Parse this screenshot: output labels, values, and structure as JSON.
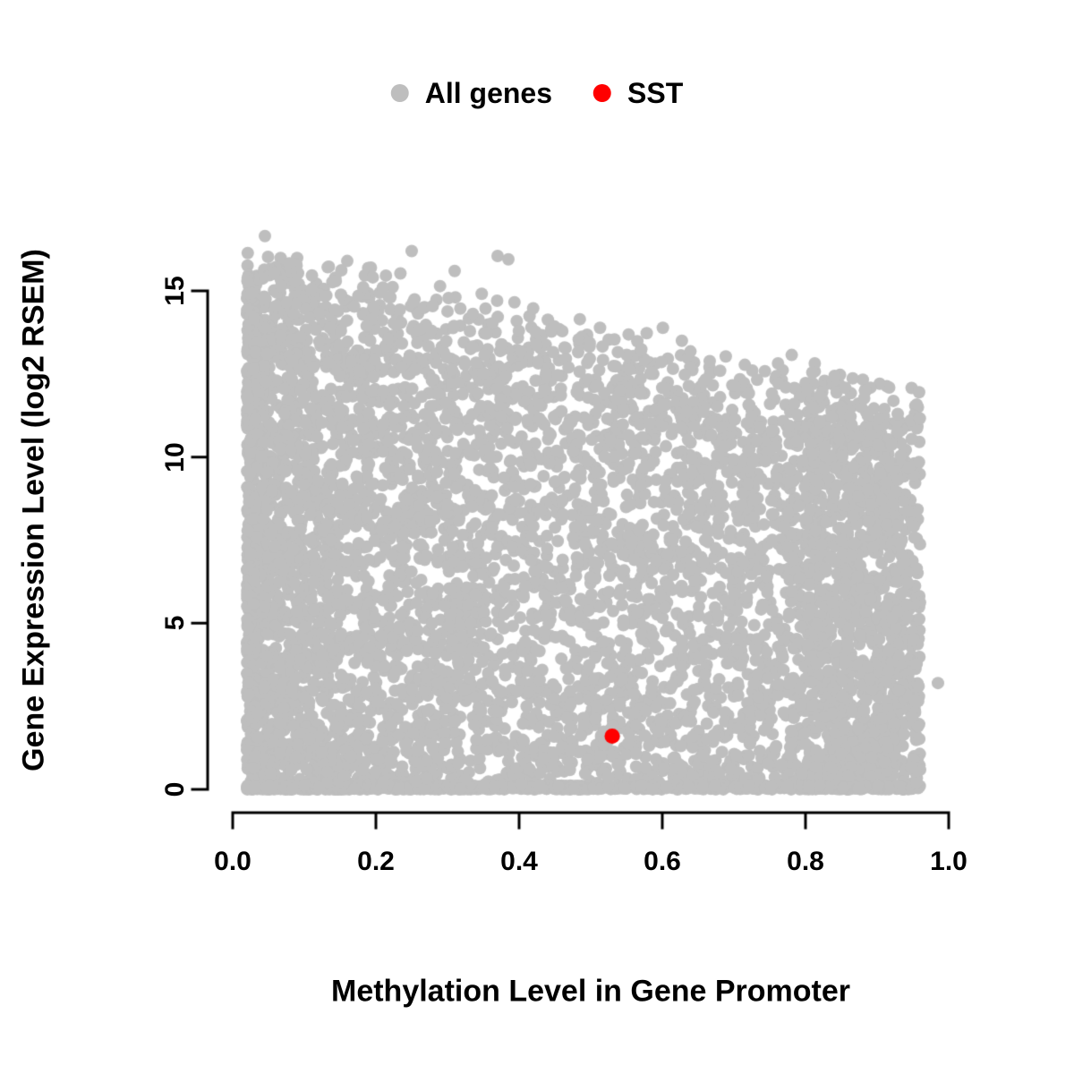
{
  "figure": {
    "background_color": "#ffffff",
    "text_color": "#000000"
  },
  "chart_data": {
    "type": "scatter",
    "title": "",
    "xlabel": "Methylation Level in Gene Promoter",
    "ylabel": "Gene Expression Level (log2 RSEM)",
    "xlim": [
      0,
      1.0
    ],
    "ylim": [
      0,
      16.8
    ],
    "xticks": [
      0.0,
      0.2,
      0.4,
      0.6,
      0.8,
      1.0
    ],
    "xtick_labels": [
      "0.0",
      "0.2",
      "0.4",
      "0.6",
      "0.8",
      "1.0"
    ],
    "yticks": [
      0,
      5,
      10,
      15
    ],
    "ytick_labels": [
      "0",
      "5",
      "10",
      "15"
    ],
    "grid": false,
    "legend_position": "top-center",
    "series": [
      {
        "name": "All genes",
        "color": "#bebebe",
        "marker": "filled-circle",
        "n_points": 7000,
        "distribution": {
          "type": "procedural-cloud",
          "description": "Dense gray cloud: methylation beta 0.02-0.96, expression 0 to ~16.5; maximum expression envelope declines roughly linearly from ~16.6 at beta=0 to ~12 at beta=1; dense band at expression 0; extra dense column at beta 0.8-0.96",
          "seed": 1337,
          "x_min": 0.02,
          "x_max": 0.96,
          "x_skew": 1.5,
          "right_cluster_fraction": 0.1,
          "right_cluster_range": [
            0.8,
            0.96
          ],
          "envelope": {
            "y_at_x0": 16.6,
            "slope": -4.8
          },
          "zero_band_fraction": 0.12,
          "zero_band_max": 0.12
        },
        "outlier_points": [
          [
            0.985,
            3.2
          ],
          [
            0.37,
            16.05
          ],
          [
            0.25,
            16.2
          ],
          [
            0.045,
            16.65
          ],
          [
            0.16,
            15.9
          ],
          [
            0.31,
            15.6
          ],
          [
            0.385,
            15.95
          ]
        ]
      },
      {
        "name": "SST",
        "color": "#ff0000",
        "marker": "filled-circle",
        "points": [
          [
            0.53,
            1.6
          ]
        ]
      }
    ]
  }
}
